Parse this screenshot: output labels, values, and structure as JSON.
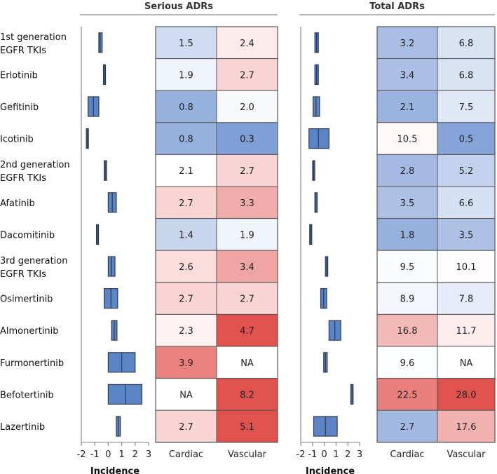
{
  "chart_data": {
    "type": "heatmap",
    "panels": [
      {
        "title": "Serious ADRs",
        "forest_axis_title": "Incidence",
        "forest_xlim": [
          -2,
          3
        ],
        "forest_ticks": [
          "-2",
          "-1",
          "0",
          "1",
          "2",
          "3"
        ],
        "columns": [
          "Cardiac",
          "Vascular"
        ],
        "rows": [
          {
            "forest": {
              "low": -0.7,
              "mid": -0.6,
              "high": -0.45
            },
            "cells": [
              "1.5",
              "2.4"
            ]
          },
          {
            "forest": {
              "low": -0.28,
              "mid": -0.28,
              "high": -0.28
            },
            "cells": [
              "1.9",
              "2.7"
            ]
          },
          {
            "forest": {
              "low": -1.5,
              "mid": -1.1,
              "high": -0.7
            },
            "cells": [
              "0.8",
              "2.0"
            ]
          },
          {
            "forest": {
              "low": -1.55,
              "mid": -1.55,
              "high": -1.55
            },
            "cells": [
              "0.8",
              "0.3"
            ]
          },
          {
            "forest": {
              "low": -0.3,
              "mid": -0.22,
              "high": -0.12
            },
            "cells": [
              "2.1",
              "2.7"
            ]
          },
          {
            "forest": {
              "low": 0.0,
              "mid": 0.3,
              "high": 0.6
            },
            "cells": [
              "2.7",
              "3.3"
            ]
          },
          {
            "forest": {
              "low": -0.8,
              "mid": -0.8,
              "high": -0.8
            },
            "cells": [
              "1.4",
              "1.9"
            ]
          },
          {
            "forest": {
              "low": 0.0,
              "mid": 0.25,
              "high": 0.5
            },
            "cells": [
              "2.6",
              "3.4"
            ]
          },
          {
            "forest": {
              "low": -0.3,
              "mid": 0.2,
              "high": 0.7
            },
            "cells": [
              "2.7",
              "2.7"
            ]
          },
          {
            "forest": {
              "low": 0.25,
              "mid": 0.45,
              "high": 0.65
            },
            "cells": [
              "2.3",
              "4.7"
            ]
          },
          {
            "forest": {
              "low": 0.0,
              "mid": 1.0,
              "high": 2.0
            },
            "cells": [
              "3.9",
              "NA"
            ]
          },
          {
            "forest": {
              "low": 0.0,
              "mid": 1.3,
              "high": 2.5
            },
            "cells": [
              "NA",
              "8.2"
            ]
          },
          {
            "forest": {
              "low": 0.6,
              "mid": 0.75,
              "high": 0.9
            },
            "cells": [
              "2.7",
              "5.1"
            ]
          }
        ]
      },
      {
        "title": "Total ADRs",
        "forest_axis_title": "Incidence",
        "forest_xlim": [
          -2,
          3
        ],
        "forest_ticks": [
          "-2",
          "-1",
          "0",
          "1",
          "2",
          "3"
        ],
        "columns": [
          "Cardiac",
          "Vascular"
        ],
        "rows": [
          {
            "forest": {
              "low": -0.8,
              "mid": -0.65,
              "high": -0.5
            },
            "cells": [
              "3.2",
              "6.8"
            ]
          },
          {
            "forest": {
              "low": -0.8,
              "mid": -0.65,
              "high": -0.5
            },
            "cells": [
              "3.4",
              "6.8"
            ]
          },
          {
            "forest": {
              "low": -0.95,
              "mid": -0.7,
              "high": -0.4
            },
            "cells": [
              "2.1",
              "7.5"
            ]
          },
          {
            "forest": {
              "low": -1.3,
              "mid": -0.5,
              "high": 0.4
            },
            "cells": [
              "10.5",
              "0.5"
            ]
          },
          {
            "forest": {
              "low": -0.9,
              "mid": -0.9,
              "high": -0.9
            },
            "cells": [
              "2.8",
              "5.2"
            ]
          },
          {
            "forest": {
              "low": -0.8,
              "mid": -0.7,
              "high": -0.6
            },
            "cells": [
              "3.5",
              "6.6"
            ]
          },
          {
            "forest": {
              "low": -1.15,
              "mid": -1.15,
              "high": -1.15
            },
            "cells": [
              "1.8",
              "3.5"
            ]
          },
          {
            "forest": {
              "low": 0.1,
              "mid": 0.2,
              "high": 0.3
            },
            "cells": [
              "9.5",
              "10.1"
            ]
          },
          {
            "forest": {
              "low": -0.3,
              "mid": -0.05,
              "high": 0.2
            },
            "cells": [
              "8.9",
              "7.8"
            ]
          },
          {
            "forest": {
              "low": 0.4,
              "mid": 0.9,
              "high": 1.4
            },
            "cells": [
              "16.8",
              "11.7"
            ]
          },
          {
            "forest": {
              "low": -0.05,
              "mid": 0.1,
              "high": 0.25
            },
            "cells": [
              "9.6",
              "NA"
            ]
          },
          {
            "forest": {
              "low": 2.25,
              "mid": 2.35,
              "high": 2.45
            },
            "cells": [
              "22.5",
              "28.0"
            ]
          },
          {
            "forest": {
              "low": -0.9,
              "mid": 0.1,
              "high": 1.1
            },
            "cells": [
              "2.7",
              "17.6"
            ]
          }
        ]
      }
    ],
    "row_labels": [
      [
        "1st generation",
        "EGFR TKIs"
      ],
      [
        "Erlotinib"
      ],
      [
        "Gefitinib"
      ],
      [
        "Icotinib"
      ],
      [
        "2nd generation",
        "EGFR TKIs"
      ],
      [
        "Afatinib"
      ],
      [
        "Dacomitinib"
      ],
      [
        "3rd generation",
        "EGFR TKIs"
      ],
      [
        "Osimertinib"
      ],
      [
        "Almonertinib"
      ],
      [
        "Furmonertinib"
      ],
      [
        "Befotertinib"
      ],
      [
        "Lazertinib"
      ]
    ],
    "colors": {
      "box_fill": "#5b85c7",
      "box_stroke": "#2d3a4f",
      "axis_line": "#888888",
      "cell_border": "#555555",
      "low_color": "#7f9fd6",
      "mid_color": "#ffffff",
      "high_color": "#e0524d"
    }
  }
}
